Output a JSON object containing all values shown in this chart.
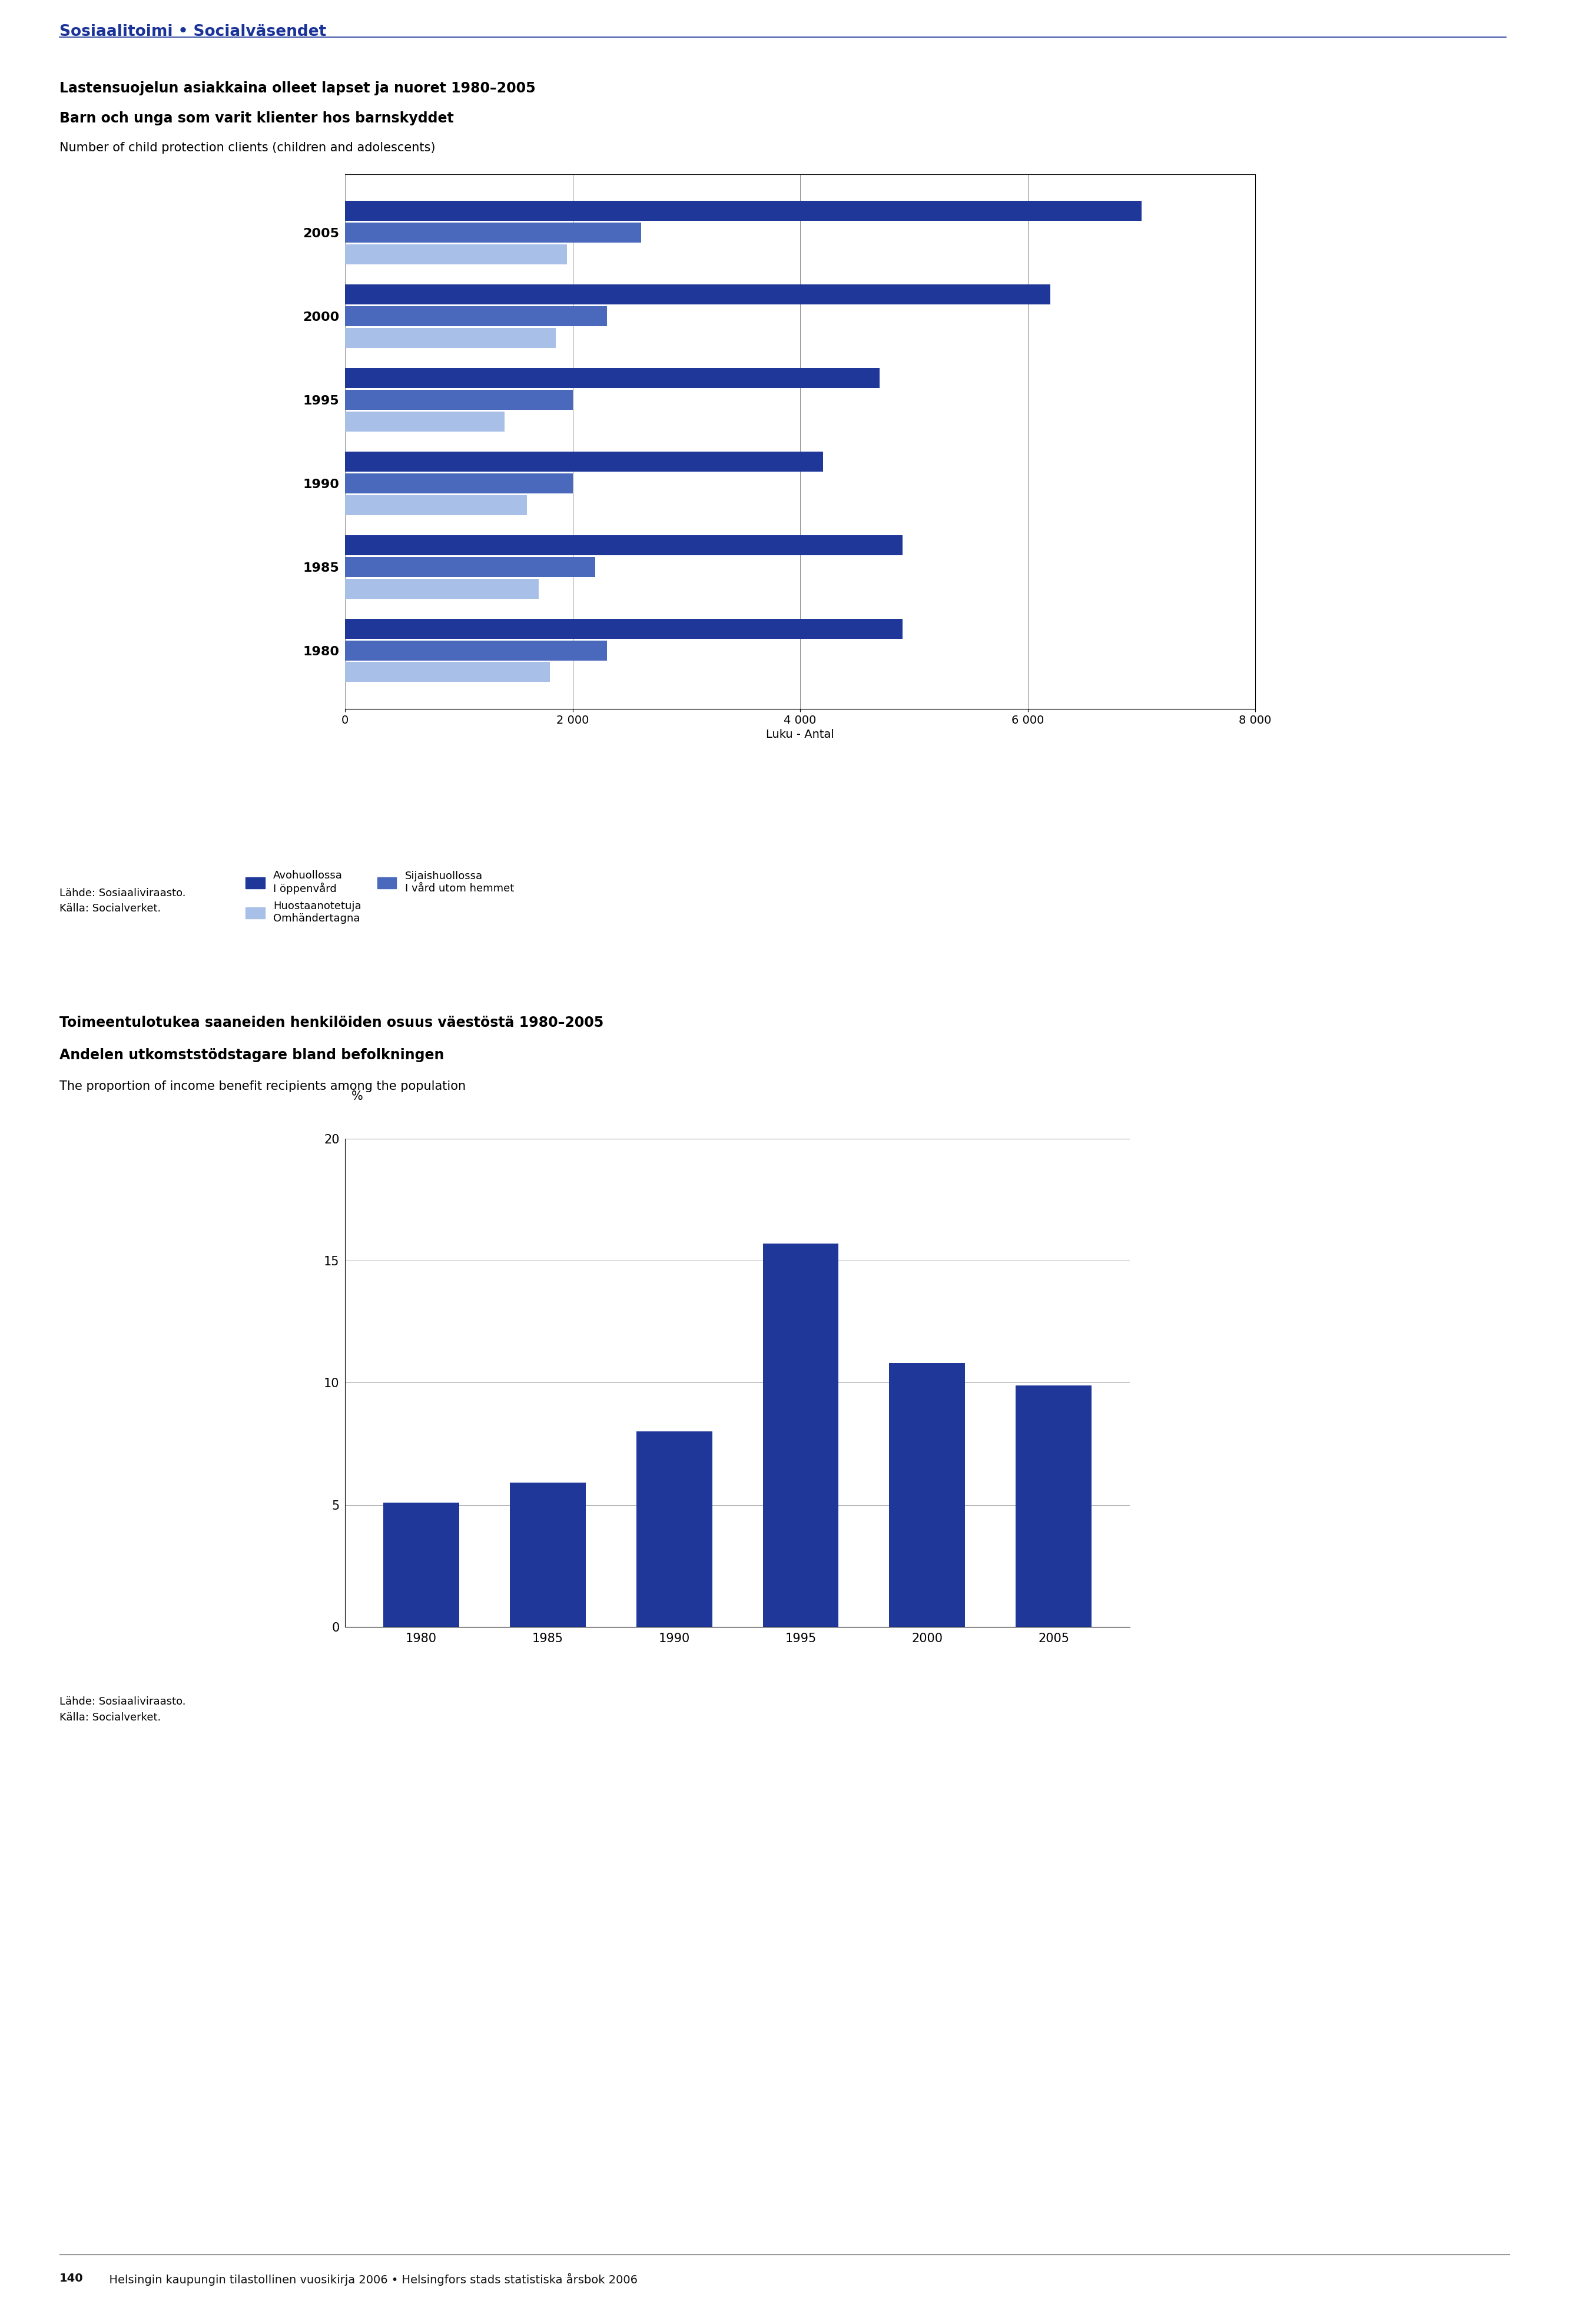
{
  "page_header": "Sosiaalitoimi • Socialväsendet",
  "header_color": "#1a3399",
  "chart1_title_line1": "Lastensuojelun asiakkaina olleet lapset ja nuoret 1980–2005",
  "chart1_title_line2": "Barn och unga som varit klienter hos barnskyddet",
  "chart1_title_line3": "Number of child protection clients (children and adolescents)",
  "chart1_xlabel": "Luku - Antal",
  "chart1_xlim": [
    0,
    8000
  ],
  "chart1_xticks": [
    0,
    2000,
    4000,
    6000,
    8000
  ],
  "chart1_years": [
    1980,
    1985,
    1990,
    1995,
    2000,
    2005
  ],
  "chart1_avohuollossa": [
    4900,
    4900,
    4200,
    4700,
    6200,
    7000
  ],
  "chart1_sijaishuollossa": [
    2300,
    2200,
    2000,
    2000,
    2300,
    2600
  ],
  "chart1_huostaanotettu": [
    1800,
    1700,
    1600,
    1400,
    1850,
    1950
  ],
  "chart1_color_dark": "#1e3799",
  "chart1_color_medium": "#4a69bd",
  "chart1_color_light": "#a8c0e8",
  "chart1_legend1": "Avohuollossa\nI öppenvård",
  "chart1_legend2": "Sijaishuollossa\nI vård utom hemmet",
  "chart1_legend3": "Huostaanotetuja\nOmhändertagna",
  "chart1_source": "Lähde: Sosiaaliviraasto.\nKälla: Socialverket.",
  "chart2_title_line1": "Toimeentulotukea saaneiden henkilöiden osuus väestöstä 1980–2005",
  "chart2_title_line2": "Andelen utkomststödstagare bland befolkningen",
  "chart2_title_line3": "The proportion of income benefit recipients among the population",
  "chart2_ylabel": "%",
  "chart2_ylim": [
    0,
    20
  ],
  "chart2_yticks": [
    0,
    5,
    10,
    15,
    20
  ],
  "chart2_years": [
    1980,
    1985,
    1990,
    1995,
    2000,
    2005
  ],
  "chart2_values": [
    5.1,
    5.9,
    8.0,
    15.7,
    10.8,
    9.9
  ],
  "chart2_color": "#1e3799",
  "chart2_source": "Lähde: Sosiaaliviraasto.\nKälla: Socialverket.",
  "footer_bold": "140",
  "footer_normal": "  Helsingin kaupungin tilastollinen vuosikirja 2006 • Helsingfors stads statistiska årsbok 2006",
  "bg_color": "#ffffff"
}
